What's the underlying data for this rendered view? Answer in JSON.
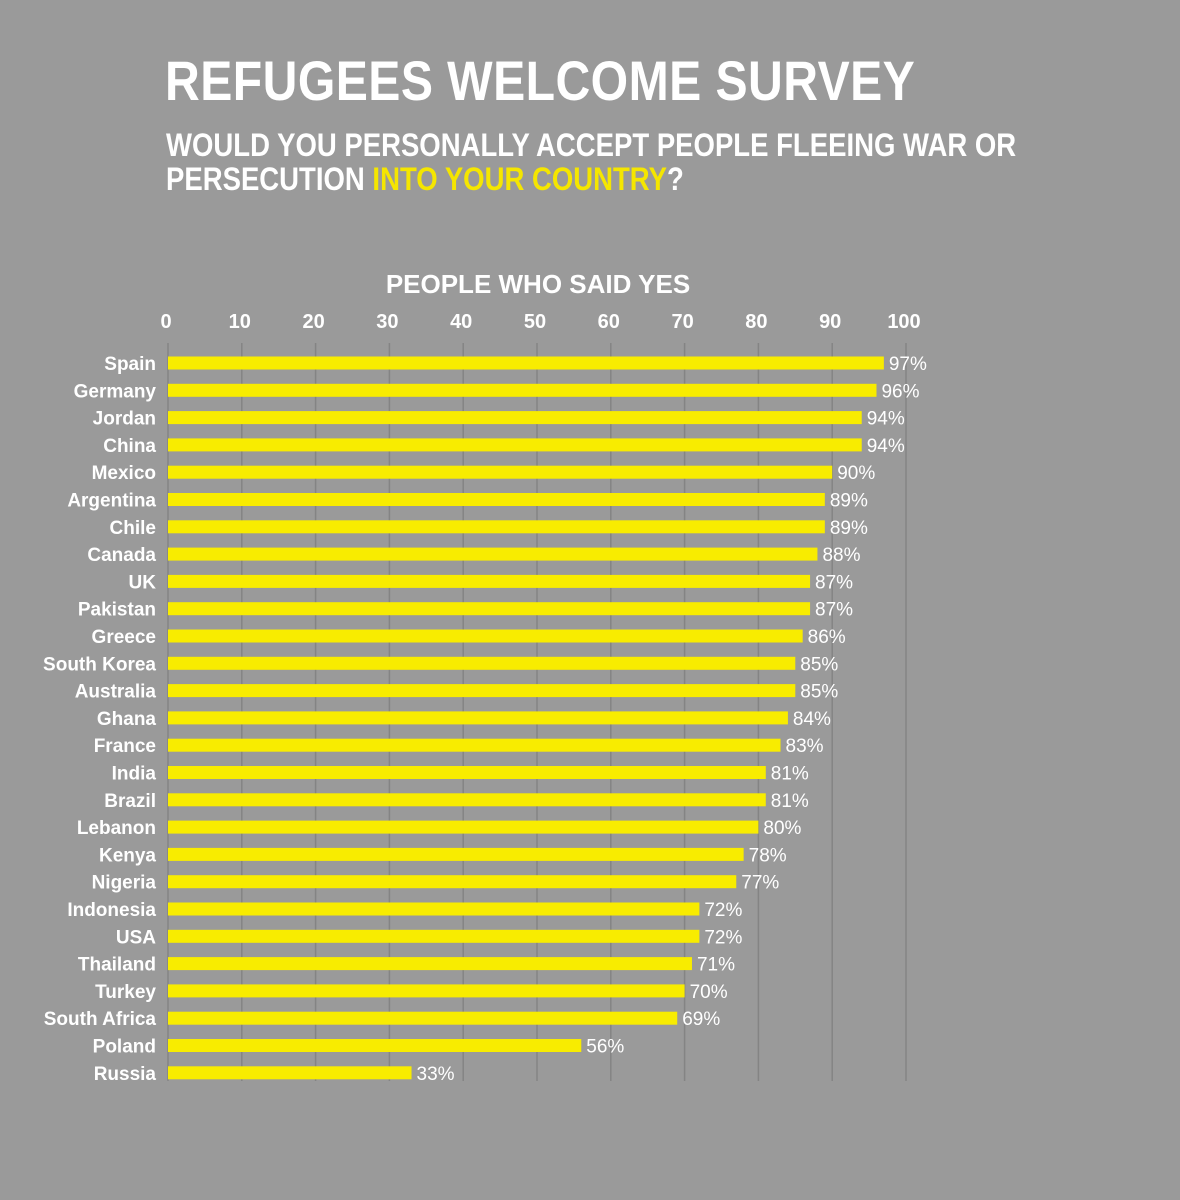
{
  "header": {
    "title": "REFUGEES WELCOME SURVEY",
    "subtitle_line1": "WOULD YOU PERSONALLY ACCEPT PEOPLE FLEEING WAR OR",
    "subtitle_line2_part1": "PERSECUTION ",
    "subtitle_line2_highlight": "INTO YOUR COUNTRY",
    "subtitle_line2_part2": "?"
  },
  "colors": {
    "background": "#9a9a9a",
    "bar": "#f8ec00",
    "highlight": "#f5e600",
    "text": "#ffffff",
    "gridline": "#848484"
  },
  "chart_data": {
    "type": "bar",
    "orientation": "horizontal",
    "title": "REFUGEES WELCOME SURVEY",
    "xlabel": "PEOPLE WHO SAID YES",
    "xlim": [
      0,
      100
    ],
    "ticks": [
      0,
      10,
      20,
      30,
      40,
      50,
      60,
      70,
      80,
      90,
      100
    ],
    "value_suffix": "%",
    "grid": true,
    "categories": [
      "Spain",
      "Germany",
      "Jordan",
      "China",
      "Mexico",
      "Argentina",
      "Chile",
      "Canada",
      "UK",
      "Pakistan",
      "Greece",
      "South Korea",
      "Australia",
      "Ghana",
      "France",
      "India",
      "Brazil",
      "Lebanon",
      "Kenya",
      "Nigeria",
      "Indonesia",
      "USA",
      "Thailand",
      "Turkey",
      "South Africa",
      "Poland",
      "Russia"
    ],
    "values": [
      97,
      96,
      94,
      94,
      90,
      89,
      89,
      88,
      87,
      87,
      86,
      85,
      85,
      84,
      83,
      81,
      81,
      80,
      78,
      77,
      72,
      72,
      71,
      70,
      69,
      56,
      33
    ]
  }
}
